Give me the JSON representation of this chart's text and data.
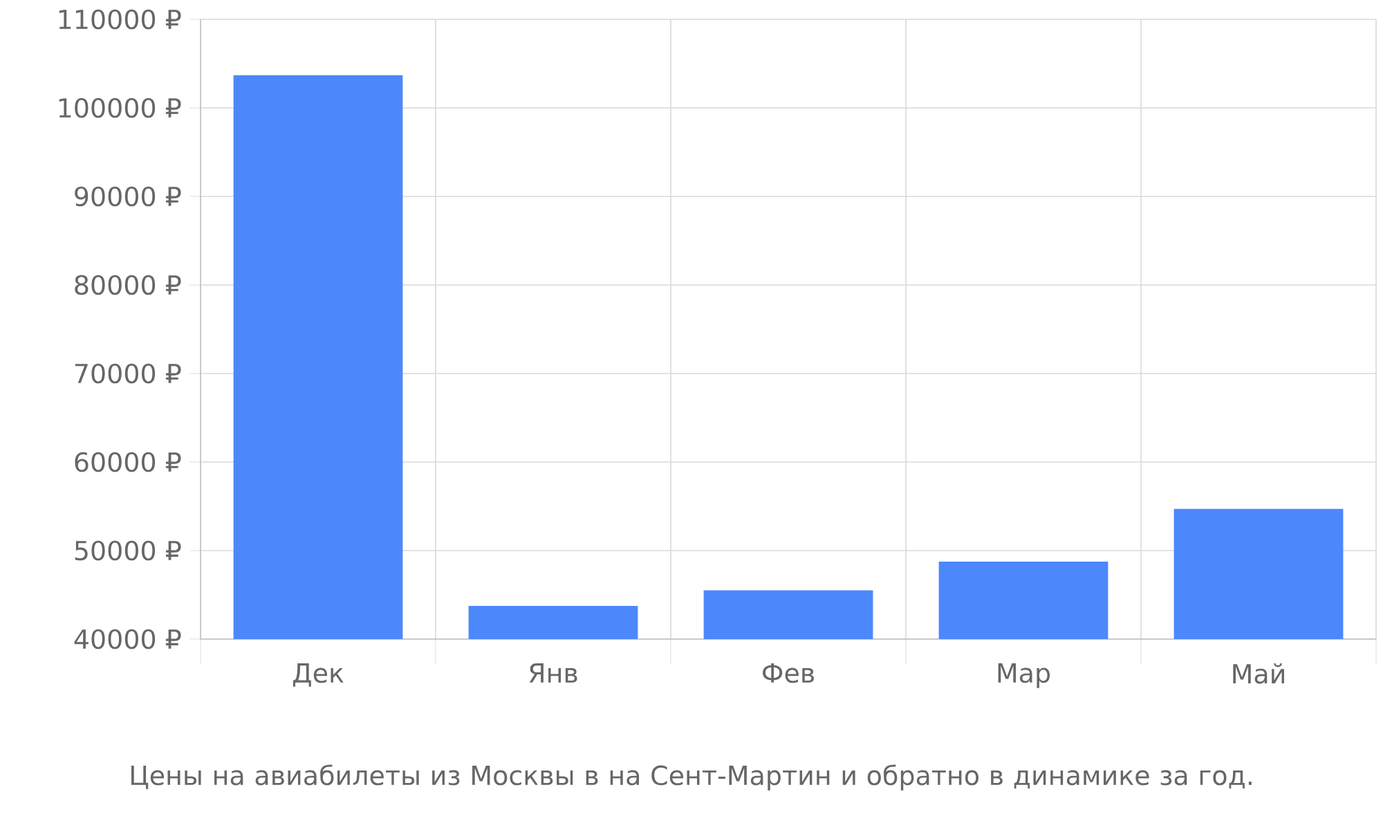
{
  "chart_data": {
    "type": "bar",
    "title": "Цены на авиабилеты из Москвы в на Сент-Мартин и обратно в динамике за год.",
    "categories": [
      "Дек",
      "Янв",
      "Фев",
      "Мар",
      "Май"
    ],
    "values": [
      103700,
      43750,
      45500,
      48750,
      54700
    ],
    "color": "#4d88fb",
    "ylim": [
      40000,
      110000
    ],
    "yticks": [
      {
        "value": 40000,
        "label": "40000 ₽"
      },
      {
        "value": 50000,
        "label": "50000 ₽"
      },
      {
        "value": 60000,
        "label": "60000 ₽"
      },
      {
        "value": 70000,
        "label": "70000 ₽"
      },
      {
        "value": 80000,
        "label": "80000 ₽"
      },
      {
        "value": 90000,
        "label": "90000 ₽"
      },
      {
        "value": 100000,
        "label": "100000 ₽"
      },
      {
        "value": 110000,
        "label": "110000 ₽"
      }
    ],
    "grid": true
  }
}
